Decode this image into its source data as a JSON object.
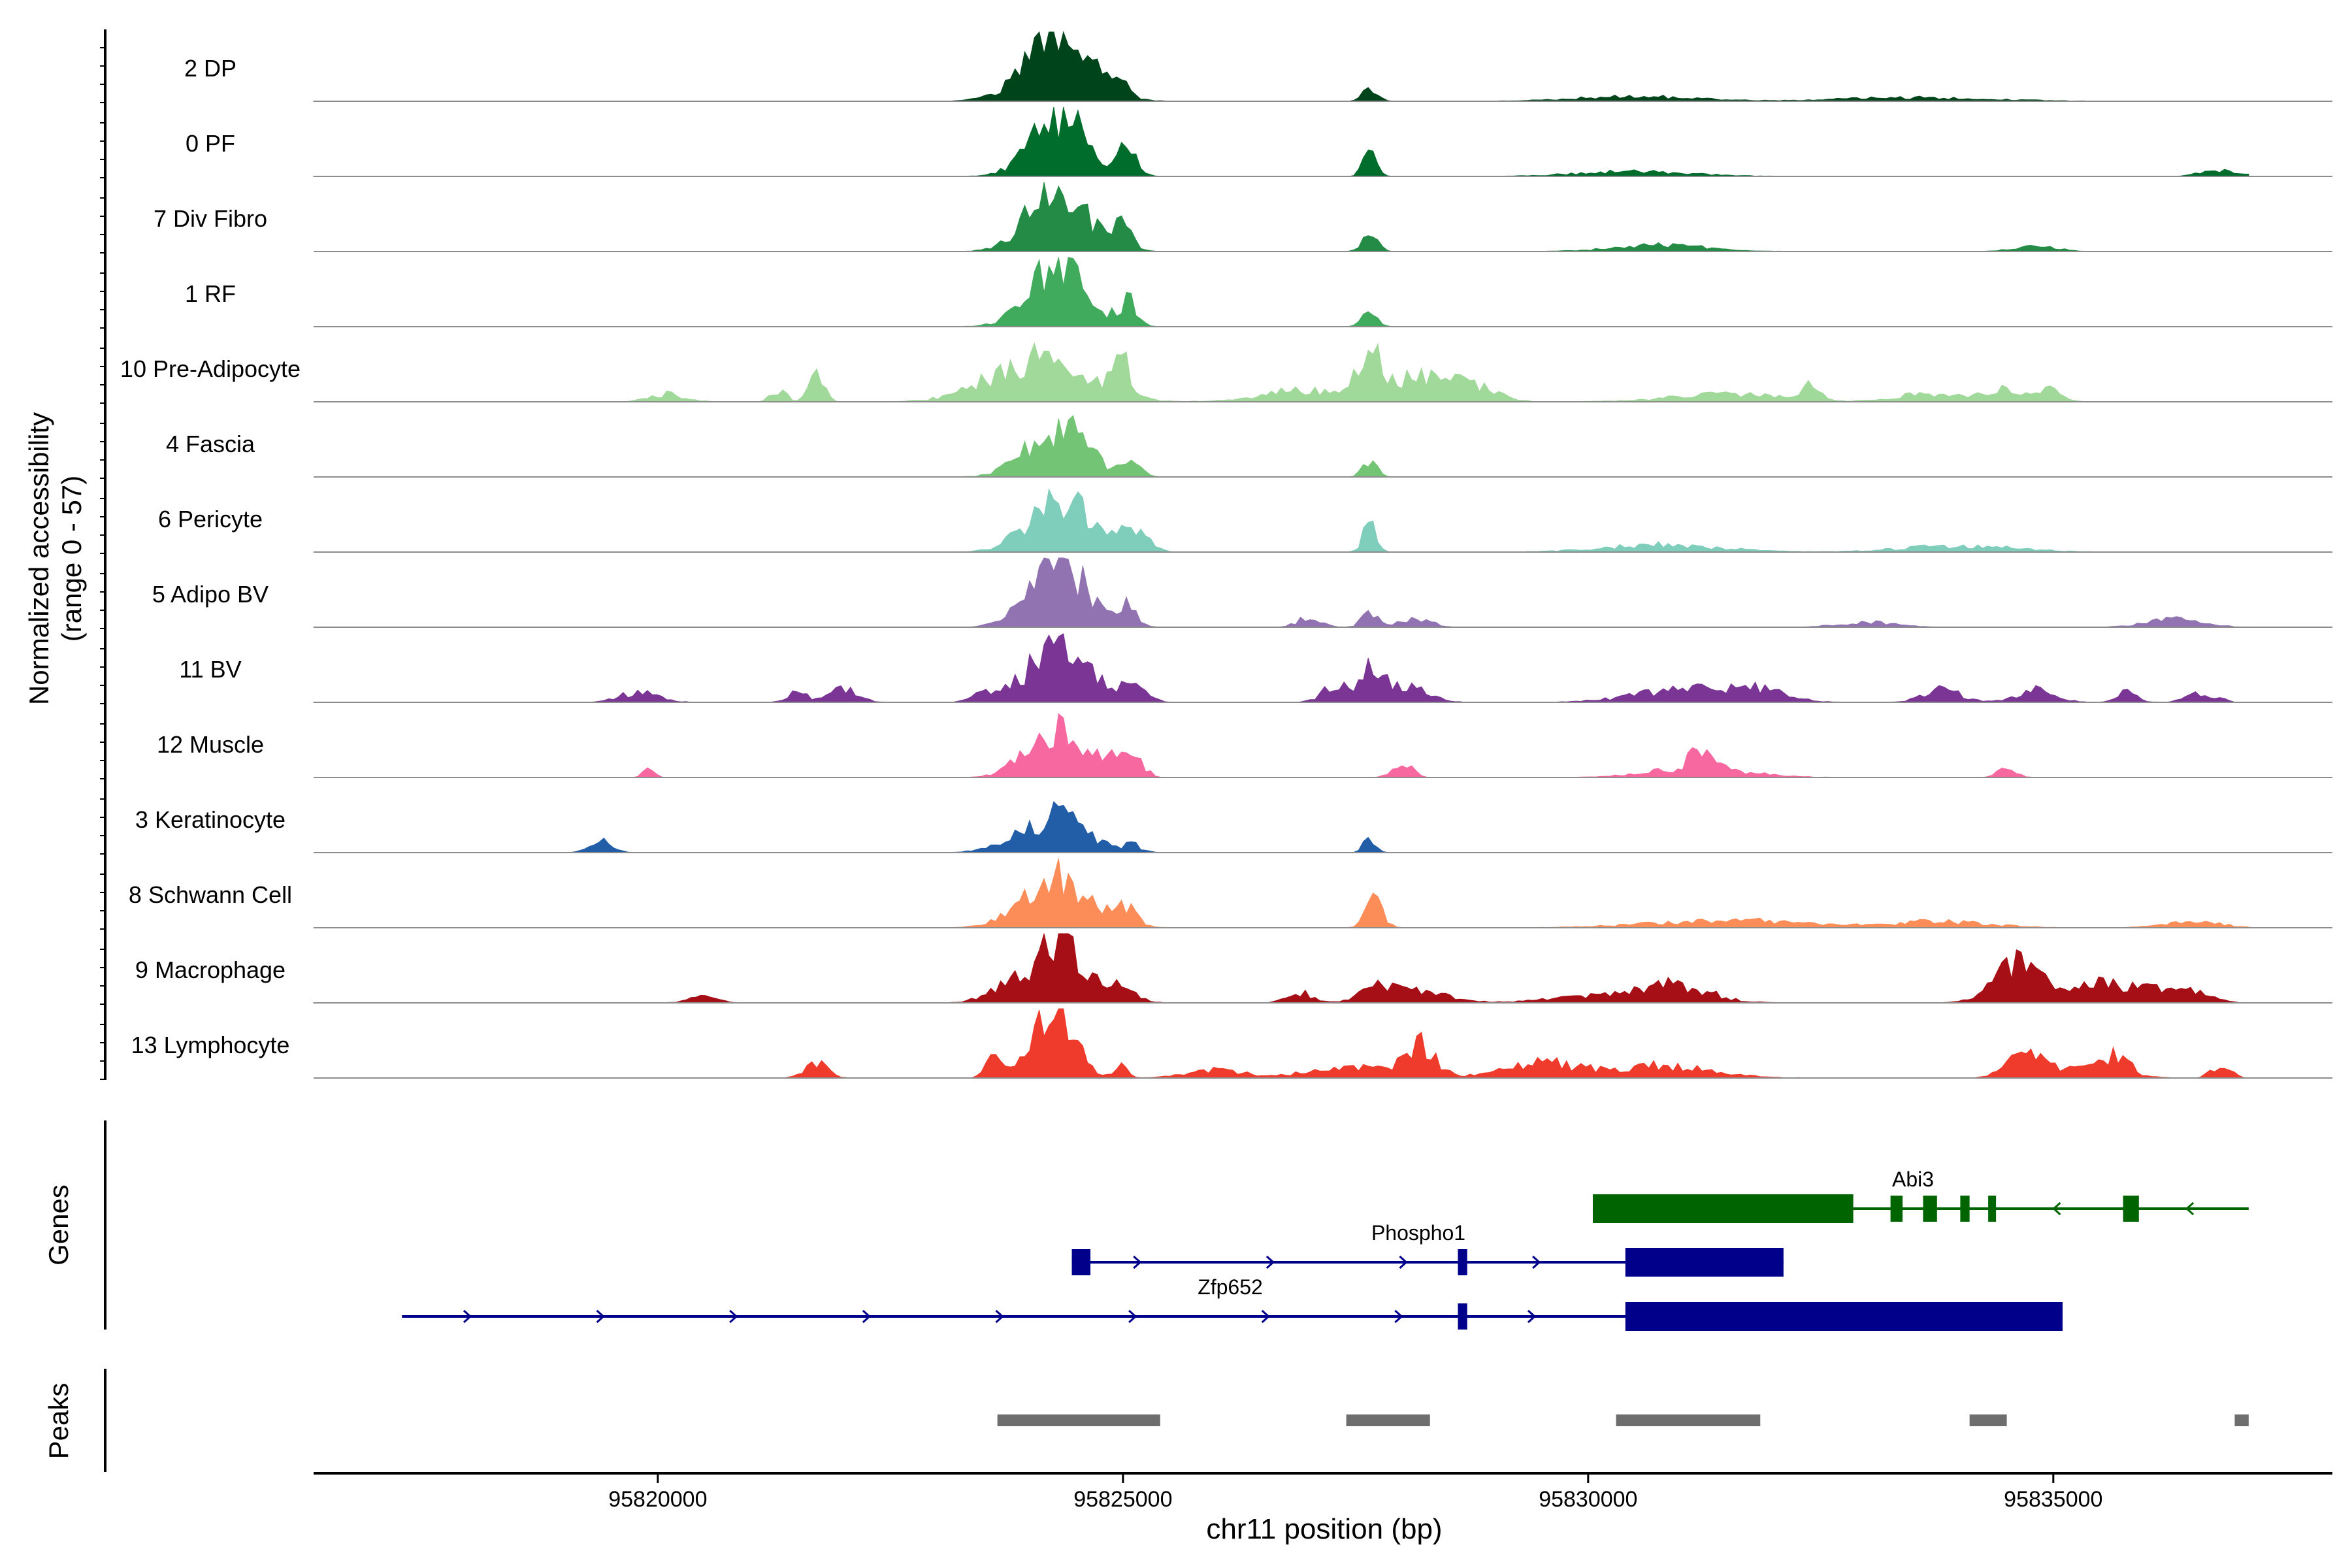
{
  "chart_data": {
    "type": "area",
    "title": "",
    "ylabel_line1": "Normalized accessibility",
    "ylabel_line2": "(range 0 - 57)",
    "y_range": [
      0,
      57
    ],
    "xlabel": "chr11 position (bp)",
    "xlim": [
      95816300,
      95838000
    ],
    "xticks": [
      95820000,
      95825000,
      95830000,
      95835000
    ],
    "xtick_labels": [
      "95820000",
      "95825000",
      "95830000",
      "95835000"
    ],
    "data_start": 95816300,
    "data_end": 95837100,
    "tracks": [
      {
        "name": "2 DP",
        "color": "#00441b",
        "noise": 0.05,
        "cover": 0.97,
        "seed": 11,
        "peaks": [
          [
            95824300,
            350,
            50
          ],
          [
            95825000,
            80,
            8
          ],
          [
            95827650,
            80,
            10
          ],
          [
            95830500,
            600,
            4
          ],
          [
            95833500,
            800,
            3
          ]
        ]
      },
      {
        "name": "0 PF",
        "color": "#006d2c",
        "noise": 0.05,
        "cover": 0.97,
        "seed": 23,
        "peaks": [
          [
            95824300,
            280,
            52
          ],
          [
            95825050,
            100,
            22
          ],
          [
            95827650,
            70,
            18
          ],
          [
            95830500,
            600,
            4
          ],
          [
            95836800,
            200,
            5
          ]
        ]
      },
      {
        "name": "7 Div Fibro",
        "color": "#238b45",
        "noise": 0.06,
        "cover": 0.9,
        "seed": 37,
        "peaks": [
          [
            95824300,
            300,
            54
          ],
          [
            95825000,
            100,
            18
          ],
          [
            95827650,
            80,
            14
          ],
          [
            95830800,
            500,
            5
          ],
          [
            95834800,
            200,
            6
          ]
        ]
      },
      {
        "name": "1 RF",
        "color": "#41ab5d",
        "noise": 0.05,
        "cover": 0.9,
        "seed": 41,
        "peaks": [
          [
            95824300,
            300,
            48
          ],
          [
            95825050,
            90,
            20
          ],
          [
            95827650,
            80,
            14
          ]
        ]
      },
      {
        "name": "10 Pre-Adipocyte",
        "color": "#a1d99b",
        "noise": 0.08,
        "cover": 0.6,
        "seed": 53,
        "peaks": [
          [
            95824100,
            500,
            36
          ],
          [
            95825000,
            100,
            26
          ],
          [
            95827650,
            150,
            34
          ],
          [
            95828300,
            300,
            24
          ],
          [
            95821700,
            80,
            22
          ],
          [
            95821300,
            80,
            10
          ],
          [
            95826900,
            400,
            10
          ],
          [
            95828900,
            200,
            8
          ],
          [
            95831500,
            600,
            6
          ],
          [
            95832400,
            80,
            12
          ],
          [
            95833600,
            300,
            6
          ],
          [
            95834500,
            300,
            10
          ],
          [
            95835000,
            100,
            10
          ],
          [
            95820100,
            200,
            6
          ]
        ]
      },
      {
        "name": "4 Fascia",
        "color": "#74c476",
        "noise": 0.05,
        "cover": 0.88,
        "seed": 61,
        "peaks": [
          [
            95824300,
            320,
            40
          ],
          [
            95825100,
            90,
            12
          ],
          [
            95827650,
            80,
            12
          ]
        ]
      },
      {
        "name": "6 Pericyte",
        "color": "#7fcdbb",
        "noise": 0.06,
        "cover": 0.9,
        "seed": 71,
        "peaks": [
          [
            95824300,
            320,
            44
          ],
          [
            95825100,
            150,
            18
          ],
          [
            95827650,
            70,
            22
          ],
          [
            95830800,
            600,
            6
          ],
          [
            95834000,
            600,
            5
          ]
        ]
      },
      {
        "name": "5 Adipo BV",
        "color": "#9273b2",
        "noise": 0.06,
        "cover": 0.9,
        "seed": 83,
        "peaks": [
          [
            95824300,
            300,
            57
          ],
          [
            95825050,
            90,
            16
          ],
          [
            95827650,
            80,
            14
          ],
          [
            95828150,
            150,
            8
          ],
          [
            95827000,
            120,
            8
          ],
          [
            95836300,
            300,
            6
          ],
          [
            95833000,
            300,
            4
          ]
        ]
      },
      {
        "name": "11 BV",
        "color": "#7a3595",
        "noise": 0.1,
        "cover": 0.55,
        "seed": 97,
        "peaks": [
          [
            95824300,
            300,
            52
          ],
          [
            95825100,
            150,
            12
          ],
          [
            95827700,
            120,
            30
          ],
          [
            95827300,
            150,
            14
          ],
          [
            95828100,
            200,
            12
          ],
          [
            95819800,
            200,
            8
          ],
          [
            95821500,
            100,
            10
          ],
          [
            95822000,
            150,
            10
          ],
          [
            95823500,
            120,
            10
          ],
          [
            95831000,
            500,
            10
          ],
          [
            95831800,
            300,
            10
          ],
          [
            95833800,
            200,
            10
          ],
          [
            95834800,
            200,
            10
          ],
          [
            95835800,
            100,
            10
          ],
          [
            95836600,
            150,
            8
          ]
        ]
      },
      {
        "name": "12 Muscle",
        "color": "#f768a1",
        "noise": 0.05,
        "cover": 0.4,
        "seed": 101,
        "peaks": [
          [
            95824300,
            300,
            44
          ],
          [
            95824900,
            120,
            12
          ],
          [
            95825100,
            120,
            14
          ],
          [
            95828000,
            100,
            12
          ],
          [
            95831200,
            500,
            8
          ],
          [
            95831200,
            100,
            16
          ],
          [
            95819900,
            60,
            8
          ],
          [
            95834500,
            100,
            8
          ]
        ]
      },
      {
        "name": "3 Keratinocyte",
        "color": "#225ea8",
        "noise": 0.04,
        "cover": 0.9,
        "seed": 113,
        "peaks": [
          [
            95824300,
            300,
            30
          ],
          [
            95827650,
            60,
            14
          ],
          [
            95819400,
            120,
            10
          ],
          [
            95823700,
            200,
            6
          ],
          [
            95825100,
            100,
            6
          ]
        ]
      },
      {
        "name": "8 Schwann Cell",
        "color": "#fc8d59",
        "noise": 0.05,
        "cover": 0.85,
        "seed": 127,
        "peaks": [
          [
            95824300,
            350,
            40
          ],
          [
            95825050,
            100,
            16
          ],
          [
            95827700,
            90,
            22
          ],
          [
            95831500,
            800,
            6
          ],
          [
            95833800,
            500,
            5
          ],
          [
            95836500,
            300,
            5
          ]
        ]
      },
      {
        "name": "9 Macrophage",
        "color": "#a50f15",
        "noise": 0.08,
        "cover": 0.55,
        "seed": 131,
        "peaks": [
          [
            95824300,
            260,
            56
          ],
          [
            95823700,
            200,
            10
          ],
          [
            95825000,
            150,
            12
          ],
          [
            95827700,
            150,
            18
          ],
          [
            95828200,
            300,
            10
          ],
          [
            95826900,
            150,
            8
          ],
          [
            95830400,
            600,
            8
          ],
          [
            95831000,
            300,
            10
          ],
          [
            95834600,
            250,
            30
          ],
          [
            95835300,
            250,
            14
          ],
          [
            95835900,
            300,
            12
          ],
          [
            95820500,
            150,
            5
          ],
          [
            95836500,
            200,
            8
          ]
        ]
      },
      {
        "name": "13 Lymphocyte",
        "color": "#ef3b2c",
        "noise": 0.1,
        "cover": 0.4,
        "seed": 149,
        "peaks": [
          [
            95824250,
            220,
            57
          ],
          [
            95823600,
            80,
            14
          ],
          [
            95825000,
            60,
            12
          ],
          [
            95828200,
            150,
            26
          ],
          [
            95821700,
            120,
            12
          ],
          [
            95827500,
            500,
            8
          ],
          [
            95829500,
            400,
            12
          ],
          [
            95830800,
            500,
            10
          ],
          [
            95834650,
            150,
            20
          ],
          [
            95835200,
            400,
            10
          ],
          [
            95835700,
            120,
            14
          ],
          [
            95826000,
            300,
            6
          ],
          [
            95836800,
            100,
            10
          ]
        ]
      }
    ],
    "genes_label": "Genes",
    "genes": [
      {
        "name": "Abi3",
        "color": "#006400",
        "strand": "-",
        "row": 0,
        "start": 95830050,
        "end": 95837100,
        "exons": [
          [
            95830050,
            95832850
          ],
          [
            95833250,
            95833380
          ],
          [
            95833600,
            95833750
          ],
          [
            95834000,
            95834100
          ],
          [
            95834300,
            95834380
          ],
          [
            95835750,
            95835920
          ]
        ]
      },
      {
        "name": "Phospho1",
        "color": "#00008b",
        "strand": "+",
        "row": 1,
        "start": 95824450,
        "end": 95832100,
        "exons": [
          [
            95824450,
            95824650
          ],
          [
            95828600,
            95828700
          ],
          [
            95830400,
            95832100
          ]
        ]
      },
      {
        "name": "Zfp652",
        "color": "#00008b",
        "strand": "+",
        "row": 2,
        "start": 95817250,
        "end": 95835100,
        "exons": [
          [
            95828600,
            95828700
          ],
          [
            95830400,
            95835100
          ]
        ]
      }
    ],
    "peaks_label": "Peaks",
    "peak_color": "#6e6e6e",
    "peak_regions": [
      [
        95823650,
        95825400
      ],
      [
        95827400,
        95828300
      ],
      [
        95830300,
        95831850
      ],
      [
        95834100,
        95834500
      ],
      [
        95836950,
        95837100
      ]
    ]
  }
}
